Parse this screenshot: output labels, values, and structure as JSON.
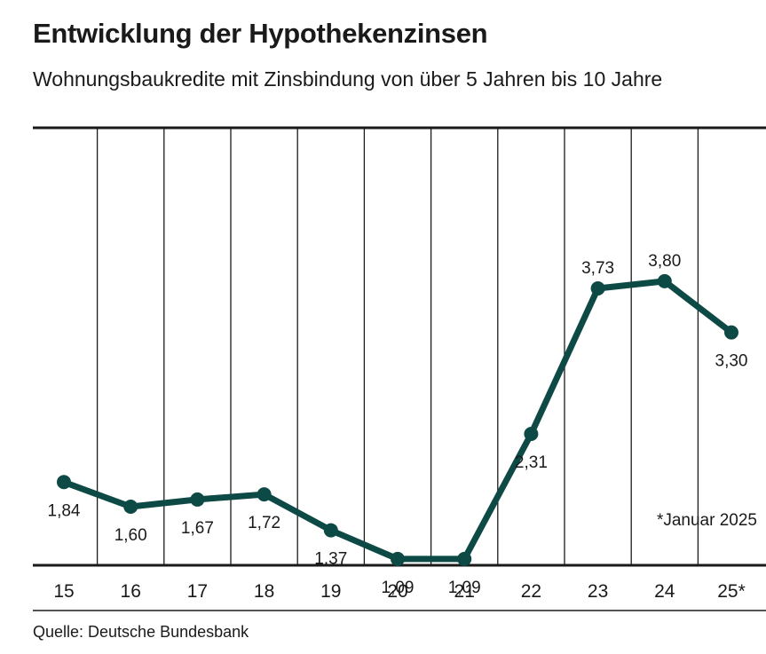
{
  "header": {
    "title": "Entwicklung der Hypothekenzinsen",
    "subtitle": "Wohnungsbaukredite mit Zinsbindung von über 5 Jahren bis 10 Jahre"
  },
  "footnote": "*Januar 2025",
  "source": "Quelle: Deutsche Bundesbank",
  "colors": {
    "line": "#0e4a45",
    "axis": "#1a1a1a",
    "grid": "#1a1a1a"
  },
  "chart_data": {
    "type": "line",
    "categories": [
      "15",
      "16",
      "17",
      "18",
      "19",
      "20",
      "21",
      "22",
      "23",
      "24",
      "25*"
    ],
    "values": [
      1.84,
      1.6,
      1.67,
      1.72,
      1.37,
      1.09,
      1.09,
      2.31,
      3.73,
      3.8,
      3.3
    ],
    "value_labels": [
      "1,84",
      "1,60",
      "1,67",
      "1,72",
      "1,37",
      "1,09",
      "1,09",
      "2,31",
      "3,73",
      "3,80",
      "3,30"
    ],
    "title": "Entwicklung der Hypothekenzinsen",
    "subtitle": "Wohnungsbaukredite mit Zinsbindung von über 5 Jahren bis 10 Jahre",
    "xlabel": "",
    "ylabel": "",
    "grid": "vertical",
    "legend": "none"
  }
}
